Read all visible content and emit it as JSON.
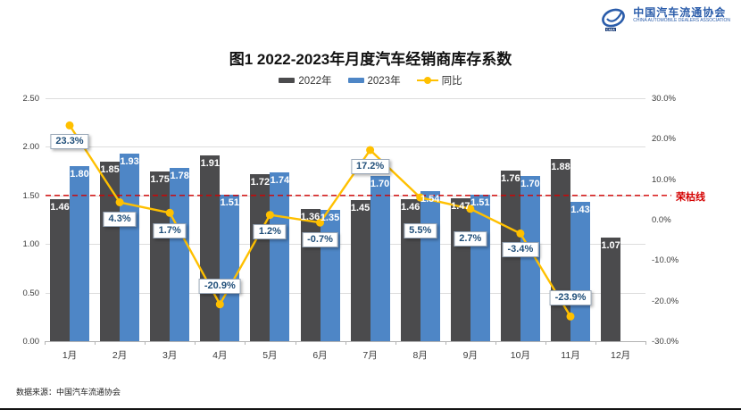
{
  "logo": {
    "org_cn": "中国汽车流通协会",
    "org_en": "CHINA AUTOMOBILE DEALERS ASSOCIATION",
    "color": "#2a5caa"
  },
  "header": {
    "title": "图1  2022-2023年月度汽车经销商库存系数"
  },
  "legend": [
    {
      "label": "2022年",
      "type": "swatch",
      "color": "#4b4b4d"
    },
    {
      "label": "2023年",
      "type": "swatch",
      "color": "#4e86c6"
    },
    {
      "label": "同比",
      "type": "line-marker",
      "color": "#ffc000"
    }
  ],
  "footer": {
    "source": "数据来源：中国汽车流通协会"
  },
  "chart_data": {
    "type": "bar",
    "title": "图1  2022-2023年月度汽车经销商库存系数",
    "categories": [
      "1月",
      "2月",
      "3月",
      "4月",
      "5月",
      "6月",
      "7月",
      "8月",
      "9月",
      "10月",
      "11月",
      "12月"
    ],
    "series": [
      {
        "name": "2022年",
        "type": "bar",
        "color": "#4b4b4d",
        "values": [
          1.46,
          1.85,
          1.75,
          1.91,
          1.72,
          1.36,
          1.45,
          1.46,
          1.47,
          1.76,
          1.88,
          1.07
        ]
      },
      {
        "name": "2023年",
        "type": "bar",
        "color": "#4e86c6",
        "values": [
          1.8,
          1.93,
          1.78,
          1.51,
          1.74,
          1.35,
          1.7,
          1.54,
          1.51,
          1.7,
          1.43,
          null
        ]
      },
      {
        "name": "同比",
        "type": "line",
        "color": "#ffc000",
        "unit": "%",
        "values": [
          23.3,
          4.3,
          1.7,
          -20.9,
          1.2,
          -0.7,
          17.2,
          5.5,
          2.7,
          -3.4,
          -23.9,
          null
        ]
      }
    ],
    "left_axis": {
      "min": 0,
      "max": 2.5,
      "ticks": [
        2.5,
        2.0,
        1.5,
        1.0,
        0.5,
        0.0
      ]
    },
    "right_axis": {
      "min": -30,
      "max": 30,
      "ticks": [
        30.0,
        20.0,
        10.0,
        0.0,
        -10.0,
        -20.0,
        -30.0
      ],
      "unit": "%"
    },
    "threshold_line": {
      "value": 1.5,
      "label": "荣枯线",
      "color": "#d40000",
      "style": "dashed"
    },
    "grid": true,
    "legend_position": "top",
    "callout_offsets": [
      10,
      10,
      12,
      -10,
      10,
      11,
      10,
      29,
      25,
      10,
      -10,
      0
    ]
  }
}
